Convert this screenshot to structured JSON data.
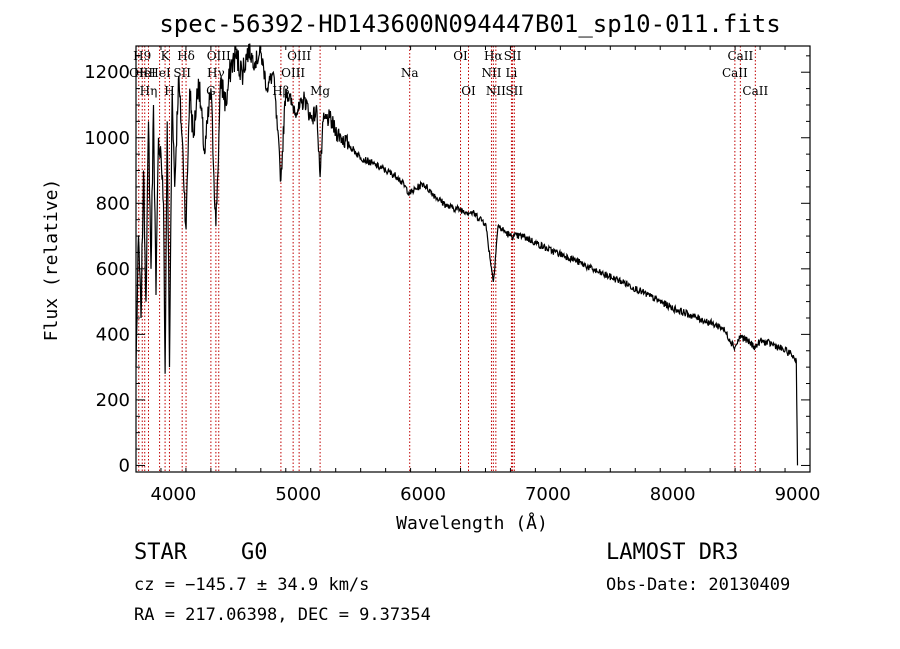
{
  "chart_data": {
    "type": "line",
    "title": "spec-56392-HD143600N094447B01_sp10-011.fits",
    "xlabel": "Wavelength (Å)",
    "ylabel": "Flux (relative)",
    "xlim": [
      3700,
      9100
    ],
    "ylim": [
      -20,
      1280
    ],
    "x_ticks": [
      4000,
      5000,
      6000,
      7000,
      8000,
      9000
    ],
    "x_tick_labels": [
      "4000",
      "5000",
      "6000",
      "7000",
      "8000",
      "9000"
    ],
    "y_ticks": [
      0,
      200,
      400,
      600,
      800,
      1000,
      1200
    ],
    "y_tick_labels": [
      "0",
      "200",
      "400",
      "600",
      "800",
      "1000",
      "1200"
    ],
    "series": [
      {
        "name": "spectrum",
        "x": [
          3700,
          3720,
          3740,
          3760,
          3780,
          3800,
          3820,
          3840,
          3860,
          3880,
          3900,
          3920,
          3933,
          3950,
          3968,
          3990,
          4010,
          4040,
          4070,
          4101,
          4130,
          4160,
          4200,
          4250,
          4300,
          4340,
          4380,
          4420,
          4460,
          4500,
          4550,
          4600,
          4650,
          4700,
          4750,
          4800,
          4861,
          4900,
          4950,
          5000,
          5050,
          5100,
          5150,
          5175,
          5200,
          5250,
          5300,
          5400,
          5500,
          5600,
          5700,
          5800,
          5893,
          6000,
          6100,
          6200,
          6300,
          6400,
          6500,
          6563,
          6600,
          6700,
          6800,
          6900,
          7000,
          7200,
          7400,
          7600,
          7800,
          8000,
          8200,
          8400,
          8498,
          8542,
          8600,
          8662,
          8700,
          8800,
          8900,
          8950,
          8990,
          9000
        ],
        "y": [
          300,
          700,
          450,
          900,
          500,
          1050,
          600,
          1100,
          520,
          1000,
          950,
          800,
          280,
          1050,
          300,
          1150,
          850,
          1180,
          1000,
          720,
          1150,
          1000,
          1180,
          950,
          1150,
          730,
          1180,
          1100,
          1220,
          1250,
          1200,
          1270,
          1230,
          1260,
          1150,
          1200,
          870,
          1150,
          1100,
          1080,
          1120,
          1060,
          1080,
          880,
          1050,
          1060,
          1020,
          980,
          940,
          920,
          900,
          880,
          830,
          860,
          820,
          790,
          780,
          770,
          740,
          560,
          730,
          700,
          700,
          680,
          660,
          630,
          590,
          560,
          520,
          480,
          450,
          420,
          360,
          395,
          380,
          360,
          380,
          370,
          350,
          340,
          320,
          0
        ]
      }
    ],
    "lines": [
      {
        "x": 3722,
        "label": "OII",
        "row": 1
      },
      {
        "x": 3750,
        "label": "H9",
        "row": 0
      },
      {
        "x": 3770,
        "label": "HeI",
        "row": 1
      },
      {
        "x": 3800,
        "label": "Hη",
        "row": 2
      },
      {
        "x": 3889,
        "label": "HeI",
        "row": 1
      },
      {
        "x": 3933,
        "label": "K",
        "row": 0
      },
      {
        "x": 3968,
        "label": "H",
        "row": 2
      },
      {
        "x": 4070,
        "label": "SII",
        "row": 1
      },
      {
        "x": 4101,
        "label": "Hδ",
        "row": 0
      },
      {
        "x": 4300,
        "label": "G",
        "row": 2
      },
      {
        "x": 4340,
        "label": "Hγ",
        "row": 1
      },
      {
        "x": 4363,
        "label": "OIII",
        "row": 0
      },
      {
        "x": 4861,
        "label": "Hβ",
        "row": 2
      },
      {
        "x": 4959,
        "label": "OIII",
        "row": 1
      },
      {
        "x": 5007,
        "label": "OIII",
        "row": 0
      },
      {
        "x": 5175,
        "label": "Mg",
        "row": 2
      },
      {
        "x": 5893,
        "label": "Na",
        "row": 1
      },
      {
        "x": 6300,
        "label": "OI",
        "row": 0
      },
      {
        "x": 6364,
        "label": "OI",
        "row": 2
      },
      {
        "x": 6548,
        "label": "NII",
        "row": 1
      },
      {
        "x": 6563,
        "label": "Hα",
        "row": 0
      },
      {
        "x": 6583,
        "label": "NII",
        "row": 2
      },
      {
        "x": 6708,
        "label": "Li",
        "row": 1
      },
      {
        "x": 6717,
        "label": "SII",
        "row": 0
      },
      {
        "x": 6731,
        "label": "SII",
        "row": 2
      },
      {
        "x": 8498,
        "label": "CaII",
        "row": 1
      },
      {
        "x": 8542,
        "label": "CaII",
        "row": 0
      },
      {
        "x": 8662,
        "label": "CaII",
        "row": 2
      }
    ],
    "annotations": {
      "class": "STAR",
      "subclass": "G0",
      "survey": "LAMOST DR3",
      "cz": "cz = −145.7 ± 34.9 km/s",
      "obs_date": "Obs-Date: 20130409",
      "radec": "RA = 217.06398, DEC =   9.37354"
    }
  },
  "colors": {
    "spectrum": "#000000",
    "line_markers": "#c00000",
    "axes": "#000000"
  }
}
